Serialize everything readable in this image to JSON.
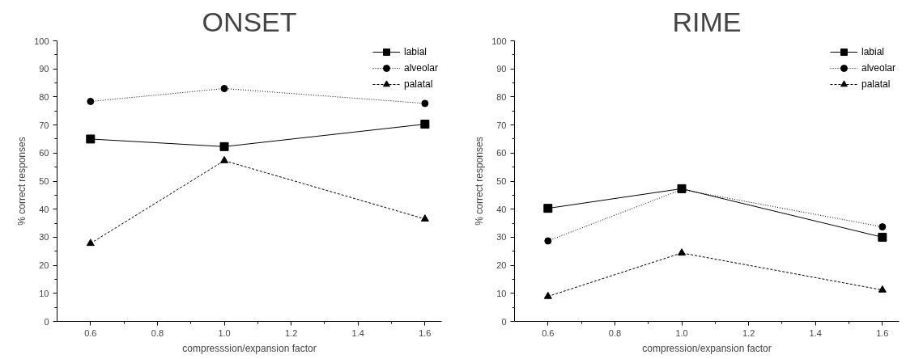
{
  "chart_data": [
    {
      "type": "line",
      "title": "ONSET",
      "xlabel": "compresssion/expansion factor",
      "ylabel": "% correct responses",
      "x": [
        0.6,
        1.0,
        1.6
      ],
      "xlim": [
        0.5,
        1.65
      ],
      "ylim": [
        0,
        100
      ],
      "xticks": [
        0.6,
        {
          "value": 0.7,
          "label": null
        },
        0.8,
        {
          "value": 0.9,
          "label": null
        },
        {
          "value": 1.0,
          "label": "1.0"
        },
        {
          "value": 1.1,
          "label": null
        },
        1.2,
        {
          "value": 1.3,
          "label": null
        },
        1.4,
        {
          "value": 1.5,
          "label": null
        },
        1.6
      ],
      "yticks": [
        0,
        {
          "value": 5,
          "label": null
        },
        10,
        {
          "value": 15,
          "label": null
        },
        20,
        {
          "value": 25,
          "label": null
        },
        30,
        {
          "value": 35,
          "label": null
        },
        40,
        {
          "value": 45,
          "label": null
        },
        50,
        {
          "value": 55,
          "label": null
        },
        60,
        {
          "value": 65,
          "label": null
        },
        70,
        {
          "value": 75,
          "label": null
        },
        80,
        {
          "value": 85,
          "label": null
        },
        90,
        {
          "value": 95,
          "label": null
        },
        100
      ],
      "grid": false,
      "legend": "top right",
      "series": [
        {
          "name": "labial",
          "color": "#000000",
          "marker": "square",
          "line_style": "solid",
          "values": [
            65,
            62.3,
            70.3
          ]
        },
        {
          "name": "alveolar",
          "color": "#000000",
          "marker": "circle",
          "line_style": "dotted",
          "values": [
            78.4,
            83,
            77.7
          ]
        },
        {
          "name": "palatal",
          "color": "#000000",
          "marker": "triangle",
          "line_style": "dashed",
          "values": [
            27.8,
            57.3,
            36.5
          ]
        }
      ]
    },
    {
      "type": "line",
      "title": "RIME",
      "xlabel": "compression/expansion factor",
      "ylabel": "% correct responses",
      "x": [
        0.6,
        1.0,
        1.6
      ],
      "xlim": [
        0.5,
        1.65
      ],
      "ylim": [
        0,
        100
      ],
      "xticks": [
        0.6,
        {
          "value": 0.7,
          "label": null
        },
        0.8,
        {
          "value": 0.9,
          "label": null
        },
        {
          "value": 1.0,
          "label": "1.0"
        },
        {
          "value": 1.1,
          "label": null
        },
        1.2,
        {
          "value": 1.3,
          "label": null
        },
        1.4,
        {
          "value": 1.5,
          "label": null
        },
        1.6
      ],
      "yticks": [
        0,
        {
          "value": 5,
          "label": null
        },
        10,
        {
          "value": 15,
          "label": null
        },
        20,
        {
          "value": 25,
          "label": null
        },
        30,
        {
          "value": 35,
          "label": null
        },
        40,
        {
          "value": 45,
          "label": null
        },
        50,
        {
          "value": 55,
          "label": null
        },
        60,
        {
          "value": 65,
          "label": null
        },
        70,
        {
          "value": 75,
          "label": null
        },
        80,
        {
          "value": 85,
          "label": null
        },
        90,
        {
          "value": 95,
          "label": null
        },
        100
      ],
      "grid": false,
      "legend": "top right",
      "series": [
        {
          "name": "labial",
          "color": "#000000",
          "marker": "square",
          "line_style": "solid",
          "values": [
            40.3,
            47.3,
            30
          ]
        },
        {
          "name": "alveolar",
          "color": "#000000",
          "marker": "circle",
          "line_style": "dotted",
          "values": [
            28.7,
            47,
            33.7
          ]
        },
        {
          "name": "palatal",
          "color": "#000000",
          "marker": "triangle",
          "line_style": "dashed",
          "values": [
            8.9,
            24.4,
            11.2
          ]
        }
      ]
    }
  ]
}
